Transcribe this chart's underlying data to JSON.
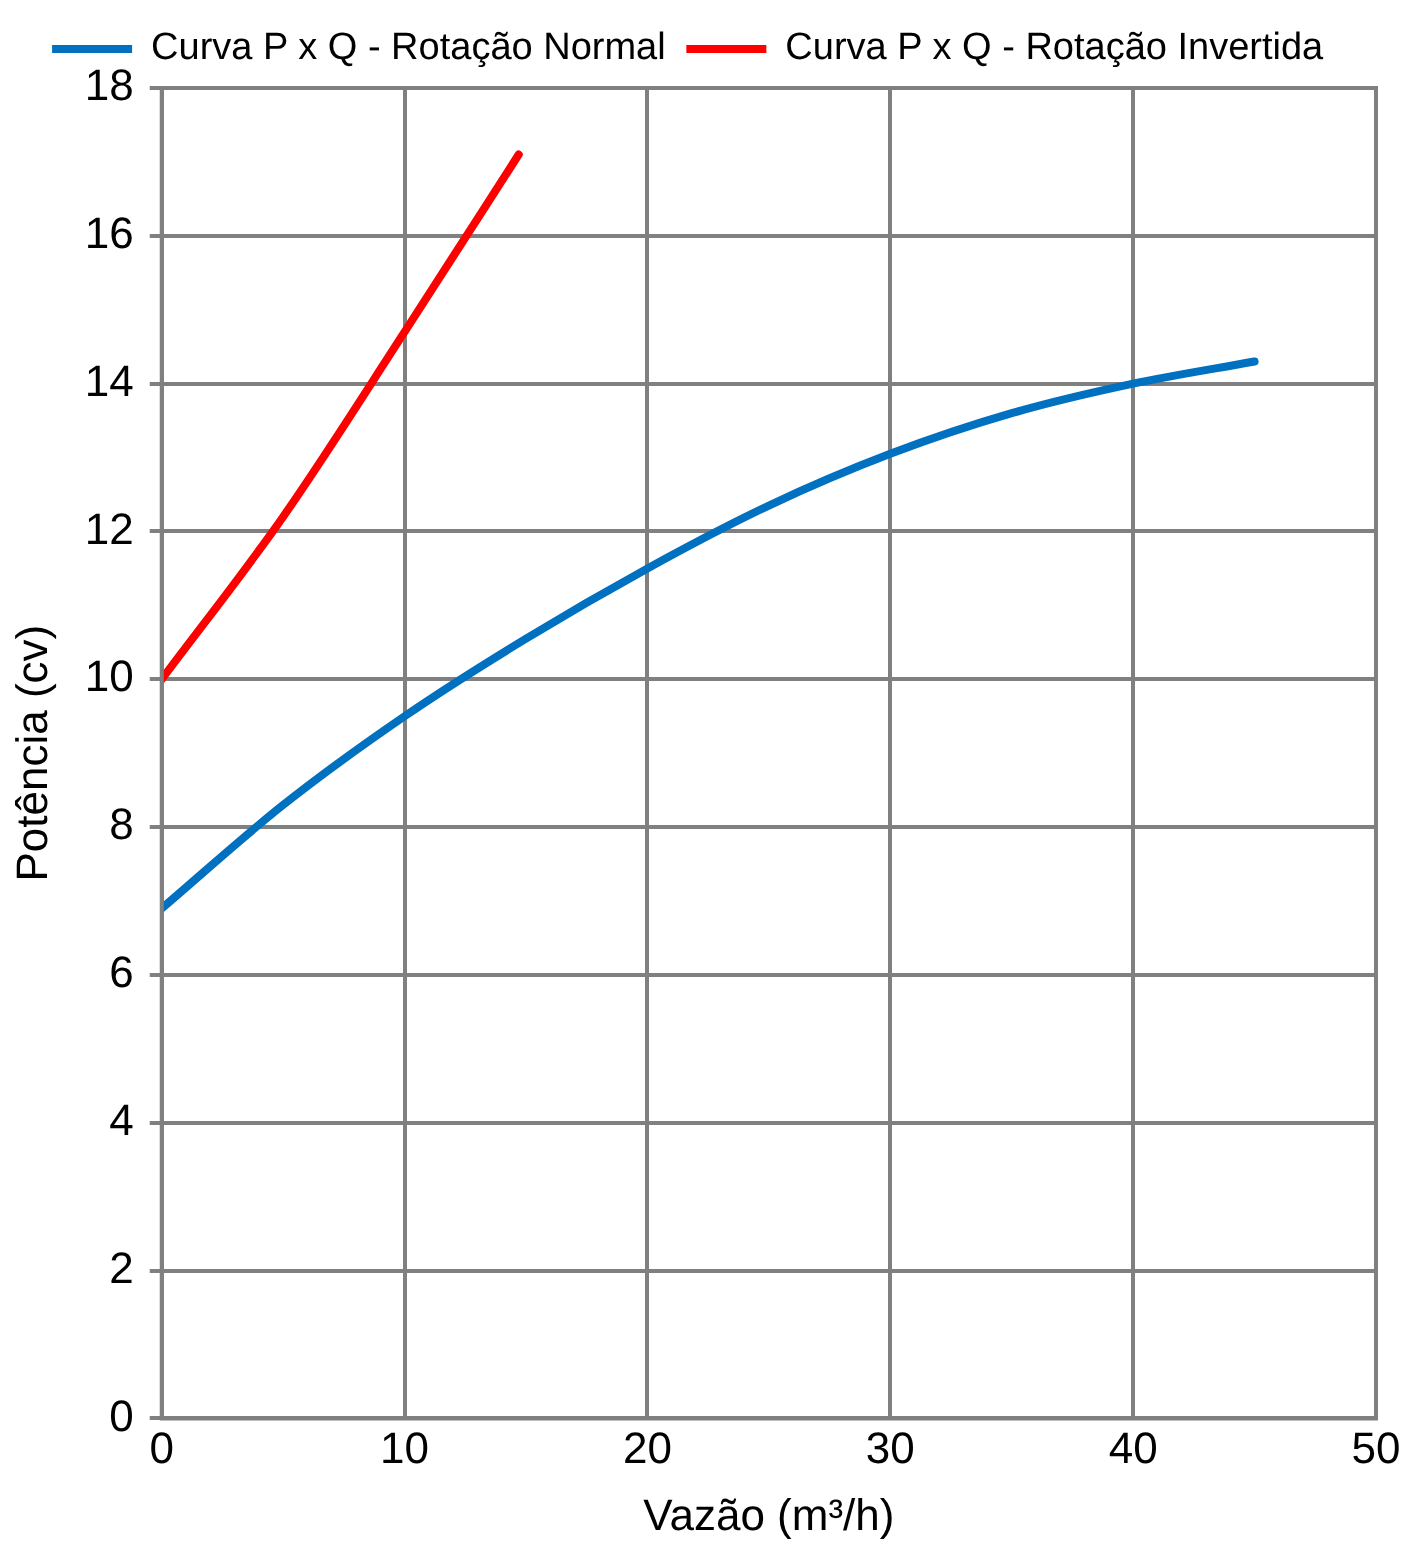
{
  "chart_data": {
    "type": "line",
    "xlabel": "Vazão (m³/h)",
    "ylabel": "Potência (cv)",
    "xlim": [
      0,
      50
    ],
    "xticks": [
      0,
      10,
      20,
      30,
      40,
      50
    ],
    "ylim": [
      0,
      18
    ],
    "yticks": [
      0,
      2,
      4,
      6,
      8,
      10,
      12,
      14,
      16,
      18
    ],
    "grid": true,
    "legend": "top",
    "marker": "none",
    "line_style": "solid",
    "series": [
      {
        "name": "Curva P x Q - Rotação Normal",
        "color": "#0070c0",
        "x": [
          0,
          5,
          10,
          15,
          20,
          25,
          30,
          35,
          40,
          45
        ],
        "values": [
          6.9,
          8.3,
          9.5,
          10.55,
          11.5,
          12.35,
          13.05,
          13.6,
          14.0,
          14.3
        ]
      },
      {
        "name": "Curva P x Q - Rotação Invertida",
        "color": "#ff0000",
        "x": [
          0,
          5,
          10,
          14.7
        ],
        "values": [
          10,
          12.2,
          14.7,
          17.1
        ]
      }
    ]
  }
}
